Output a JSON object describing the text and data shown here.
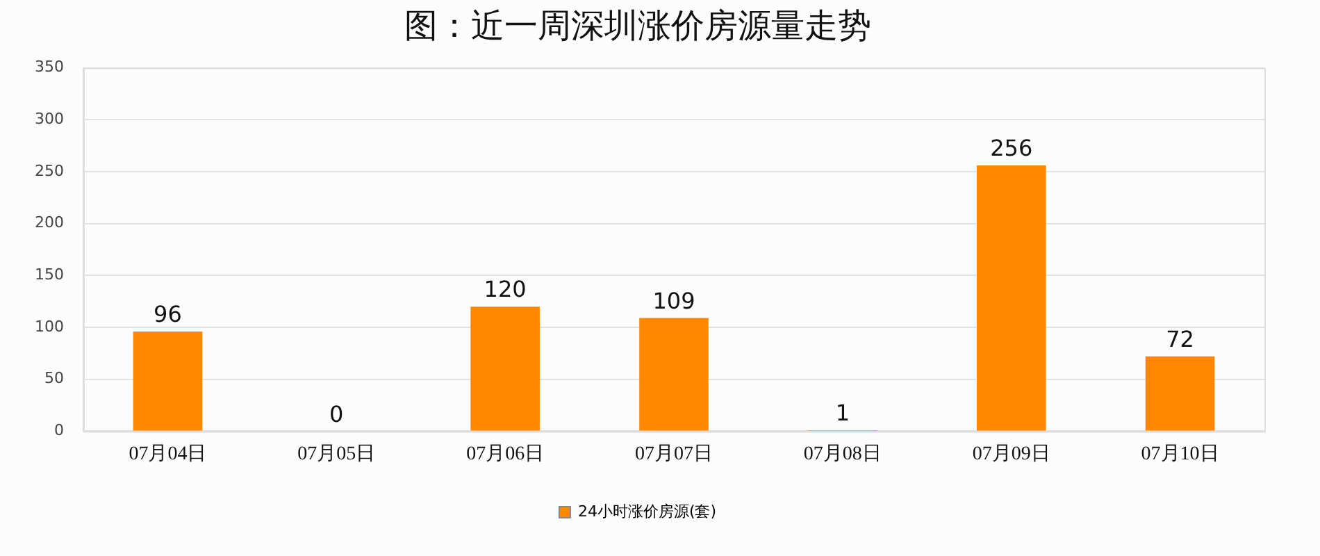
{
  "chart_data": {
    "type": "bar",
    "title": "图：近一周深圳涨价房源量走势",
    "categories": [
      "07月04日",
      "07月05日",
      "07月06日",
      "07月07日",
      "07月08日",
      "07月09日",
      "07月10日"
    ],
    "series": [
      {
        "name": "24小时涨价房源(套)",
        "color": "#ff8800",
        "values": [
          96,
          0,
          120,
          109,
          1,
          256,
          72
        ]
      }
    ],
    "ylim": [
      0,
      350
    ],
    "yticks": [
      0,
      50,
      100,
      150,
      200,
      250,
      300,
      350
    ],
    "grid": "y",
    "legend": "bottom",
    "data_labels": true
  }
}
